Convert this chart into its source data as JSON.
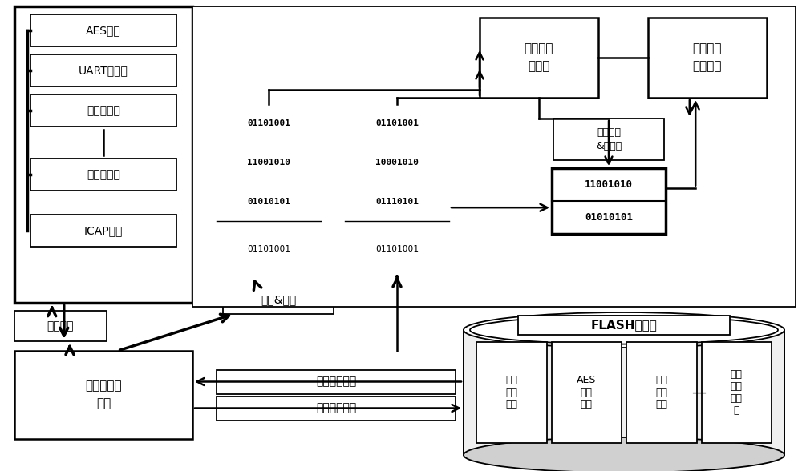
{
  "bg_color": "#ffffff",
  "fig_w": 10.0,
  "fig_h": 5.88,
  "dpi": 100,
  "modules": [
    "AES加密",
    "UART控制器",
    "图像处理核",
    "三角解算核",
    "ICAP接口"
  ],
  "bin_top1": [
    "01101001",
    "11001010",
    "01010101"
  ],
  "bin_bot1": "01101001",
  "bin_top2": [
    "01101001",
    "10001010",
    "01110101"
  ],
  "bin_bot2": "01101001",
  "bin_fault": [
    "11001010",
    "01010101"
  ],
  "flash_items": [
    "三角\n解算\n配置",
    "AES\n加密\n配置",
    "串口\n配置\n信息",
    "图像\n灰度\n预处\n理"
  ]
}
